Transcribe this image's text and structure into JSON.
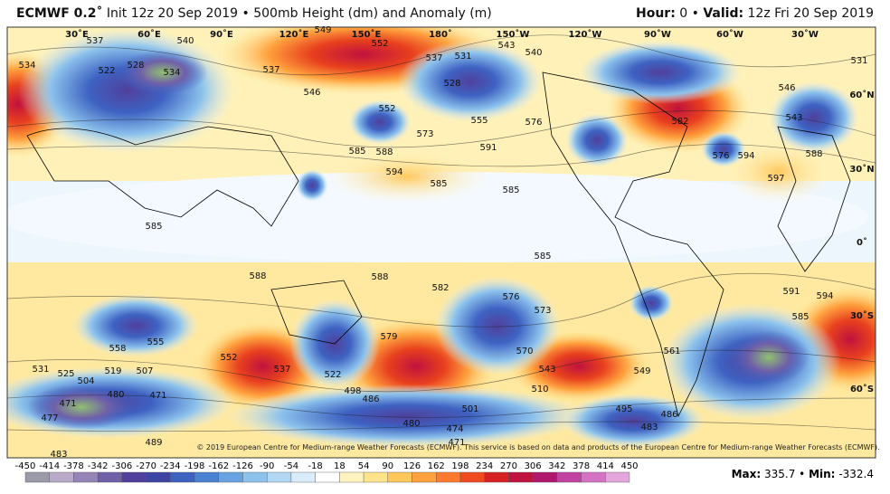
{
  "header": {
    "model": "ECMWF 0.2˚",
    "init": "Init 12z 20 Sep 2019 • 500mb Height (dm) and Anomaly (m)",
    "hour_label": "Hour:",
    "hour": "0 •",
    "valid_label": "Valid:",
    "valid": "12z Fri 20 Sep 2019"
  },
  "longitudes": [
    "30˚E",
    "60˚E",
    "90˚E",
    "120˚E",
    "150˚E",
    "180˚",
    "150˚W",
    "120˚W",
    "90˚W",
    "60˚W",
    "30˚W"
  ],
  "latitudes": [
    "60˚N",
    "30˚N",
    "0˚",
    "30˚S",
    "60˚S"
  ],
  "contours": [
    "537",
    "540",
    "549",
    "552",
    "543",
    "540",
    "534",
    "522",
    "528",
    "534",
    "537",
    "546",
    "552",
    "537",
    "531",
    "528",
    "555",
    "573",
    "591",
    "585",
    "588",
    "576",
    "582",
    "576",
    "543",
    "594",
    "597",
    "588",
    "546",
    "531",
    "594",
    "585",
    "585",
    "585",
    "588",
    "588",
    "585",
    "582",
    "576",
    "573",
    "594",
    "585",
    "591",
    "579",
    "570",
    "543",
    "561",
    "549",
    "537",
    "522",
    "552",
    "555",
    "558",
    "507",
    "519",
    "531",
    "525",
    "504",
    "480",
    "471",
    "471",
    "477",
    "498",
    "486",
    "501",
    "510",
    "495",
    "483",
    "486",
    "480",
    "474",
    "471",
    "489",
    "483"
  ],
  "copyright": "© 2019 European Centre for Medium-range Weather Forecasts (ECMWF). This service is based on data and products of the European Centre for Medium-range Weather Forecasts (ECMWF).",
  "colorbar": {
    "ticks": [
      -450,
      -414,
      -378,
      -342,
      -306,
      -270,
      -234,
      -198,
      -162,
      -126,
      -90,
      -54,
      -18,
      18,
      54,
      90,
      126,
      162,
      198,
      234,
      270,
      306,
      342,
      378,
      414,
      450
    ],
    "colors": [
      "#9a9aa8",
      "#b8aac8",
      "#9484b8",
      "#7060a8",
      "#50409c",
      "#3c44a4",
      "#3e62c2",
      "#4a82d2",
      "#68a2e0",
      "#8cc2ec",
      "#b2d8f4",
      "#d8ecfa",
      "#ffffff",
      "#fff4c0",
      "#ffe48c",
      "#ffc85c",
      "#ffa23e",
      "#ff7a2e",
      "#f04a20",
      "#d62222",
      "#c0123e",
      "#b0186e",
      "#c242a2",
      "#d472c4",
      "#e4a4dc"
    ]
  },
  "stats": {
    "max_label": "Max:",
    "max": "335.7 •",
    "min_label": "Min:",
    "min": "-332.4"
  }
}
